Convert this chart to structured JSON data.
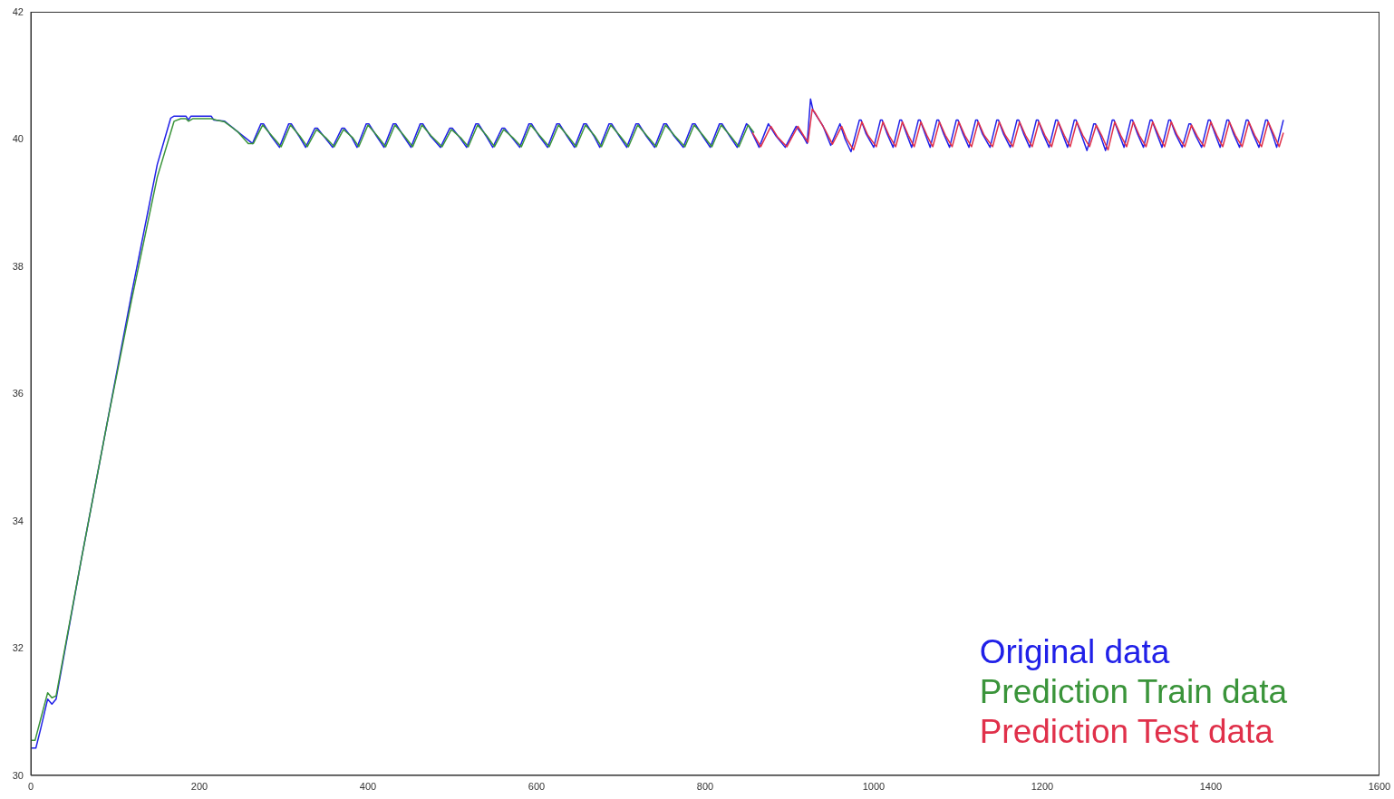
{
  "chart_data": {
    "type": "line",
    "xlim": [
      0,
      1600
    ],
    "xticks": [
      0,
      200,
      400,
      600,
      800,
      1000,
      1200,
      1400,
      1600
    ],
    "ylim": [
      30,
      42
    ],
    "yticks": [
      30,
      32,
      34,
      36,
      38,
      40,
      42
    ],
    "grid": false,
    "legend": "bottom right",
    "marker": "none",
    "line_style": "solid",
    "series": [
      {
        "name": "Original data",
        "color": "#2020e8",
        "x": [
          0,
          6,
          12,
          20,
          25,
          30,
          60,
          90,
          120,
          150,
          166,
          170,
          184,
          187,
          190,
          214,
          217,
          230,
          245,
          263,
          273,
          276,
          285,
          295,
          306,
          309,
          318,
          326,
          337,
          340,
          349,
          358,
          369,
          372,
          381,
          387,
          398,
          401,
          410,
          419,
          430,
          433,
          442,
          451,
          462,
          465,
          474,
          486,
          497,
          500,
          509,
          517,
          528,
          531,
          540,
          548,
          559,
          562,
          571,
          580,
          591,
          594,
          603,
          613,
          624,
          627,
          636,
          645,
          656,
          659,
          668,
          675,
          686,
          689,
          698,
          707,
          718,
          721,
          730,
          740,
          751,
          754,
          763,
          774,
          785,
          788,
          797,
          806,
          817,
          820,
          829,
          838,
          849,
          852,
          864,
          875,
          884,
          895,
          908,
          916,
          921,
          925,
          928,
          940,
          949,
          960,
          966,
          973,
          983,
          985,
          991,
          1000,
          1008,
          1010,
          1016,
          1023,
          1031,
          1033,
          1039,
          1045,
          1053,
          1055,
          1061,
          1067,
          1075,
          1077,
          1083,
          1090,
          1098,
          1100,
          1106,
          1113,
          1121,
          1123,
          1129,
          1138,
          1146,
          1148,
          1154,
          1162,
          1170,
          1172,
          1178,
          1185,
          1193,
          1195,
          1201,
          1208,
          1216,
          1218,
          1224,
          1230,
          1238,
          1240,
          1246,
          1253,
          1261,
          1263,
          1269,
          1275,
          1283,
          1285,
          1291,
          1297,
          1305,
          1307,
          1313,
          1320,
          1328,
          1330,
          1336,
          1342,
          1350,
          1352,
          1358,
          1366,
          1374,
          1376,
          1382,
          1389,
          1397,
          1399,
          1405,
          1411,
          1419,
          1421,
          1427,
          1434,
          1442,
          1444,
          1450,
          1457,
          1465,
          1467,
          1473,
          1478,
          1486
        ],
        "values": [
          30.43,
          30.43,
          30.75,
          31.2,
          31.12,
          31.2,
          33.4,
          35.5,
          37.6,
          39.6,
          40.33,
          40.36,
          40.36,
          40.3,
          40.36,
          40.36,
          40.3,
          40.28,
          40.12,
          39.93,
          40.24,
          40.24,
          40.05,
          39.87,
          40.24,
          40.24,
          40.05,
          39.87,
          40.17,
          40.17,
          40.02,
          39.87,
          40.17,
          40.17,
          40.02,
          39.87,
          40.24,
          40.24,
          40.05,
          39.87,
          40.24,
          40.24,
          40.05,
          39.87,
          40.24,
          40.24,
          40.05,
          39.87,
          40.17,
          40.17,
          40.02,
          39.87,
          40.24,
          40.24,
          40.05,
          39.87,
          40.17,
          40.17,
          40.02,
          39.87,
          40.24,
          40.24,
          40.05,
          39.87,
          40.24,
          40.24,
          40.05,
          39.87,
          40.24,
          40.24,
          40.05,
          39.87,
          40.24,
          40.24,
          40.05,
          39.87,
          40.24,
          40.24,
          40.05,
          39.87,
          40.24,
          40.24,
          40.05,
          39.87,
          40.24,
          40.24,
          40.05,
          39.87,
          40.24,
          40.24,
          40.05,
          39.87,
          40.24,
          40.2,
          39.87,
          40.24,
          40.05,
          39.87,
          40.2,
          40.05,
          39.93,
          40.63,
          40.45,
          40.2,
          39.9,
          40.24,
          40.0,
          39.8,
          40.3,
          40.3,
          40.08,
          39.87,
          40.3,
          40.3,
          40.08,
          39.87,
          40.3,
          40.3,
          40.08,
          39.87,
          40.3,
          40.3,
          40.08,
          39.87,
          40.3,
          40.3,
          40.08,
          39.87,
          40.3,
          40.3,
          40.08,
          39.87,
          40.3,
          40.3,
          40.08,
          39.87,
          40.3,
          40.3,
          40.08,
          39.87,
          40.3,
          40.3,
          40.08,
          39.87,
          40.3,
          40.3,
          40.08,
          39.87,
          40.3,
          40.3,
          40.08,
          39.87,
          40.3,
          40.3,
          40.08,
          39.82,
          40.24,
          40.24,
          40.05,
          39.82,
          40.3,
          40.3,
          40.08,
          39.87,
          40.3,
          40.3,
          40.08,
          39.87,
          40.3,
          40.3,
          40.08,
          39.87,
          40.3,
          40.3,
          40.08,
          39.87,
          40.24,
          40.24,
          40.05,
          39.87,
          40.3,
          40.3,
          40.08,
          39.87,
          40.3,
          40.3,
          40.08,
          39.87,
          40.3,
          40.3,
          40.08,
          39.87,
          40.3,
          40.3,
          40.08,
          39.87,
          40.3
        ]
      },
      {
        "name": "Prediction Train data",
        "color": "#3a943a",
        "x": [
          0,
          5,
          12,
          20,
          25,
          30,
          60,
          90,
          120,
          150,
          170,
          178,
          184,
          187,
          192,
          214,
          220,
          230,
          245,
          258,
          264,
          275,
          286,
          297,
          308,
          319,
          328,
          339,
          350,
          360,
          371,
          382,
          389,
          400,
          411,
          421,
          432,
          443,
          453,
          464,
          475,
          488,
          499,
          510,
          519,
          530,
          541,
          550,
          561,
          572,
          582,
          593,
          604,
          615,
          626,
          637,
          647,
          658,
          669,
          677,
          688,
          699,
          709,
          720,
          731,
          742,
          753,
          764,
          776,
          787,
          798,
          808,
          819,
          830,
          840,
          851,
          858
        ],
        "values": [
          30.55,
          30.55,
          30.9,
          31.3,
          31.22,
          31.25,
          33.4,
          35.5,
          37.5,
          39.4,
          40.28,
          40.32,
          40.32,
          40.28,
          40.32,
          40.32,
          40.3,
          40.27,
          40.12,
          39.93,
          39.93,
          40.22,
          40.05,
          39.88,
          40.22,
          40.05,
          39.88,
          40.15,
          40.02,
          39.88,
          40.15,
          40.02,
          39.88,
          40.22,
          40.05,
          39.88,
          40.22,
          40.05,
          39.88,
          40.22,
          40.05,
          39.88,
          40.15,
          40.02,
          39.88,
          40.22,
          40.05,
          39.88,
          40.15,
          40.02,
          39.88,
          40.22,
          40.05,
          39.88,
          40.22,
          40.05,
          39.88,
          40.22,
          40.05,
          39.88,
          40.22,
          40.05,
          39.88,
          40.22,
          40.05,
          39.88,
          40.22,
          40.05,
          39.88,
          40.22,
          40.05,
          39.88,
          40.22,
          40.05,
          39.88,
          40.22,
          40.1
        ]
      },
      {
        "name": "Prediction Test data",
        "color": "#e0304a",
        "x": [
          856,
          866,
          878,
          886,
          897,
          910,
          917,
          922,
          927,
          930,
          942,
          951,
          962,
          968,
          976,
          986,
          993,
          1003,
          1011,
          1018,
          1026,
          1034,
          1041,
          1048,
          1056,
          1063,
          1070,
          1078,
          1085,
          1093,
          1101,
          1108,
          1116,
          1124,
          1131,
          1141,
          1149,
          1156,
          1165,
          1173,
          1180,
          1188,
          1196,
          1203,
          1211,
          1219,
          1226,
          1233,
          1241,
          1248,
          1256,
          1264,
          1271,
          1278,
          1286,
          1293,
          1300,
          1308,
          1315,
          1323,
          1331,
          1338,
          1345,
          1353,
          1360,
          1369,
          1377,
          1384,
          1392,
          1400,
          1407,
          1414,
          1422,
          1429,
          1437,
          1445,
          1452,
          1460,
          1468,
          1475,
          1481,
          1486
        ],
        "values": [
          40.1,
          39.88,
          40.2,
          40.03,
          39.88,
          40.2,
          40.05,
          39.95,
          40.47,
          40.42,
          40.15,
          39.92,
          40.2,
          40.0,
          39.83,
          40.27,
          40.06,
          39.88,
          40.27,
          40.06,
          39.88,
          40.27,
          40.06,
          39.88,
          40.27,
          40.06,
          39.88,
          40.27,
          40.06,
          39.88,
          40.27,
          40.06,
          39.88,
          40.27,
          40.06,
          39.88,
          40.27,
          40.06,
          39.88,
          40.27,
          40.06,
          39.88,
          40.27,
          40.06,
          39.88,
          40.27,
          40.06,
          39.88,
          40.27,
          40.06,
          39.88,
          40.22,
          40.04,
          39.83,
          40.27,
          40.06,
          39.88,
          40.27,
          40.06,
          39.88,
          40.27,
          40.06,
          39.88,
          40.27,
          40.06,
          39.88,
          40.22,
          40.04,
          39.88,
          40.27,
          40.06,
          39.88,
          40.27,
          40.06,
          39.88,
          40.27,
          40.06,
          39.88,
          40.27,
          40.06,
          39.88,
          40.1
        ]
      }
    ]
  }
}
